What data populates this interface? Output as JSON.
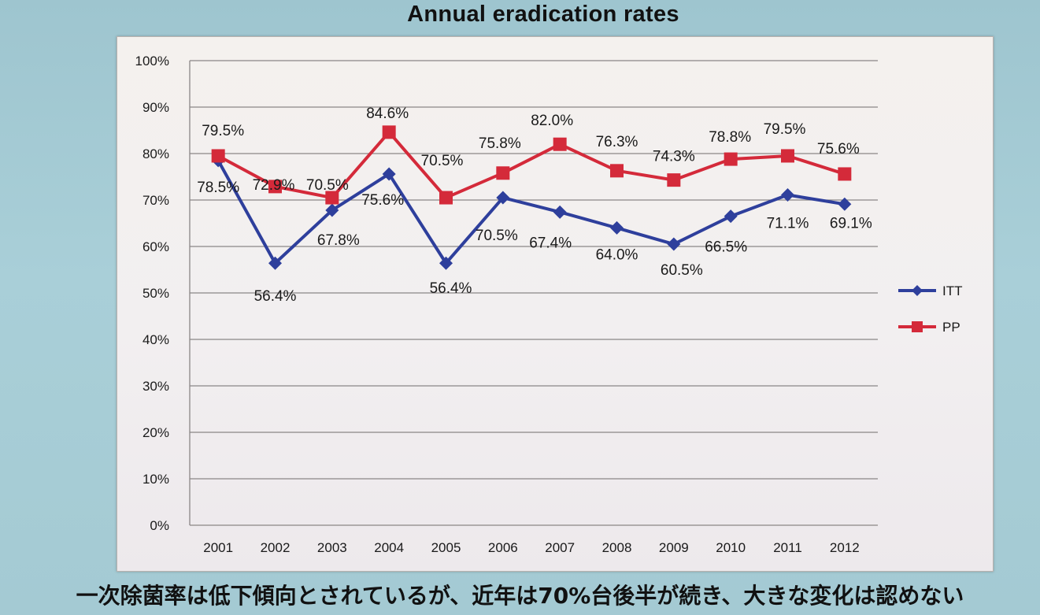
{
  "title": "Annual eradication rates",
  "caption": "一次除菌率は低下傾向とされているが、近年は70%台後半が続き、大きな変化は認めない",
  "colors": {
    "itt": "#2e3f9c",
    "pp": "#d42a3a",
    "grid": "#8a8686",
    "text": "#1a1a1a"
  },
  "chart_data": {
    "type": "line",
    "title": "Annual eradication rates",
    "categories": [
      "2001",
      "2002",
      "2003",
      "2004",
      "2005",
      "2006",
      "2007",
      "2008",
      "2009",
      "2010",
      "2011",
      "2012"
    ],
    "series": [
      {
        "name": "ITT",
        "marker": "diamond",
        "color": "#2e3f9c",
        "values": [
          78.5,
          56.4,
          67.8,
          75.6,
          56.4,
          70.5,
          67.4,
          64.0,
          60.5,
          66.5,
          71.1,
          69.1
        ],
        "labels": [
          "78.5%",
          "56.4%",
          "67.8%",
          "75.6%",
          "56.4%",
          "70.5%",
          "67.4%",
          "64.0%",
          "60.5%",
          "66.5%",
          "71.1%",
          "69.1%"
        ]
      },
      {
        "name": "PP",
        "marker": "square",
        "color": "#d42a3a",
        "values": [
          79.5,
          72.9,
          70.5,
          84.6,
          70.5,
          75.8,
          82.0,
          76.3,
          74.3,
          78.8,
          79.5,
          75.6
        ],
        "labels": [
          "79.5%",
          "72.9%",
          "70.5%",
          "84.6%",
          "70.5%",
          "75.8%",
          "82.0%",
          "76.3%",
          "74.3%",
          "78.8%",
          "79.5%",
          "75.6%"
        ]
      }
    ],
    "ylim": [
      0,
      100
    ],
    "yticks": [
      "0%",
      "10%",
      "20%",
      "30%",
      "40%",
      "50%",
      "60%",
      "70%",
      "80%",
      "90%",
      "100%"
    ],
    "grid": true,
    "legend_position": "right"
  }
}
